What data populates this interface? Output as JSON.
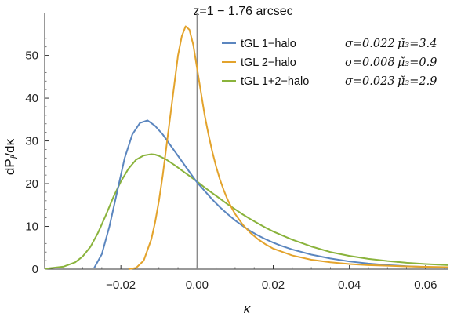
{
  "chart_data": {
    "type": "line",
    "title": "z=1 − 1.76 arcsec",
    "xlabel": "κ",
    "ylabel": "dP_l/dκ",
    "ylabel_main": "dP",
    "ylabel_sub": "l",
    "ylabel_tail": "/dκ",
    "xlim": [
      -0.04,
      0.066
    ],
    "ylim": [
      0,
      58
    ],
    "x_ticks": [
      -0.02,
      0.0,
      0.02,
      0.04,
      0.06
    ],
    "x_tick_labels": [
      "−0.02",
      "0.00",
      "0.02",
      "0.04",
      "0.06"
    ],
    "y_ticks": [
      0,
      10,
      20,
      30,
      40,
      50
    ],
    "y_tick_labels": [
      "0",
      "10",
      "20",
      "30",
      "40",
      "50"
    ],
    "vertical_line_x": 0.0,
    "grid": false,
    "legend_position": "top-right",
    "series": [
      {
        "name": "tGL 1−halo",
        "sigma_label": "σ=0.022",
        "mu_label": "μ̃₃=3.4",
        "color": "#5b86bf",
        "x": [
          -0.027,
          -0.025,
          -0.023,
          -0.021,
          -0.019,
          -0.017,
          -0.015,
          -0.013,
          -0.011,
          -0.009,
          -0.007,
          -0.005,
          -0.003,
          -0.001,
          0.0,
          0.002,
          0.004,
          0.006,
          0.008,
          0.01,
          0.012,
          0.014,
          0.016,
          0.018,
          0.02,
          0.022,
          0.025,
          0.03,
          0.035,
          0.04,
          0.045,
          0.05,
          0.055,
          0.06,
          0.066
        ],
        "y": [
          0.3,
          3.5,
          10,
          18,
          26,
          31.5,
          34.2,
          34.8,
          33.5,
          31.5,
          29,
          26.5,
          24,
          21.5,
          20.3,
          18.3,
          16.3,
          14.5,
          12.9,
          11.4,
          10.1,
          8.9,
          7.9,
          7,
          6.2,
          5.5,
          4.6,
          3.4,
          2.5,
          1.8,
          1.3,
          0.95,
          0.7,
          0.5,
          0.35
        ]
      },
      {
        "name": "tGL 2−halo",
        "sigma_label": "σ=0.008",
        "mu_label": "μ̃₃=0.9",
        "color": "#e3a32c",
        "x": [
          -0.018,
          -0.016,
          -0.014,
          -0.012,
          -0.011,
          -0.01,
          -0.009,
          -0.008,
          -0.007,
          -0.006,
          -0.005,
          -0.004,
          -0.003,
          -0.002,
          -0.001,
          0.0,
          0.001,
          0.002,
          0.003,
          0.004,
          0.005,
          0.006,
          0.007,
          0.008,
          0.009,
          0.01,
          0.012,
          0.014,
          0.016,
          0.018,
          0.02,
          0.025,
          0.03,
          0.035,
          0.04,
          0.045,
          0.05,
          0.055,
          0.06,
          0.066
        ],
        "y": [
          0,
          0.3,
          2,
          7,
          11,
          16,
          22,
          29,
          36,
          43,
          50,
          54.5,
          56.8,
          56,
          52.5,
          47,
          41.5,
          36,
          31.5,
          27.5,
          24,
          21,
          18.5,
          16.3,
          14.5,
          12.9,
          10.4,
          8.5,
          7,
          5.8,
          4.8,
          3.2,
          2.2,
          1.6,
          1.2,
          0.95,
          0.8,
          0.65,
          0.55,
          0.45
        ]
      },
      {
        "name": "tGL 1+2−halo",
        "sigma_label": "σ=0.023",
        "mu_label": "μ̃₃=2.9",
        "color": "#8ab33c",
        "x": [
          -0.04,
          -0.035,
          -0.032,
          -0.03,
          -0.028,
          -0.026,
          -0.024,
          -0.022,
          -0.02,
          -0.018,
          -0.016,
          -0.014,
          -0.012,
          -0.011,
          -0.01,
          -0.008,
          -0.006,
          -0.004,
          -0.002,
          0.0,
          0.002,
          0.004,
          0.006,
          0.008,
          0.01,
          0.012,
          0.014,
          0.016,
          0.018,
          0.02,
          0.025,
          0.03,
          0.035,
          0.04,
          0.045,
          0.05,
          0.055,
          0.06,
          0.066
        ],
        "y": [
          0.1,
          0.6,
          1.6,
          3,
          5.2,
          8.5,
          12.5,
          16.8,
          20.5,
          23.5,
          25.6,
          26.6,
          26.9,
          26.8,
          26.5,
          25.6,
          24.4,
          23.1,
          21.8,
          20.5,
          19.1,
          17.8,
          16.5,
          15.2,
          14,
          12.8,
          11.7,
          10.7,
          9.7,
          8.8,
          6.9,
          5.3,
          4,
          3.1,
          2.4,
          1.9,
          1.5,
          1.2,
          0.95
        ]
      }
    ]
  },
  "colors": {
    "axis": "#333333",
    "zero_line": "#8a8a8a"
  }
}
